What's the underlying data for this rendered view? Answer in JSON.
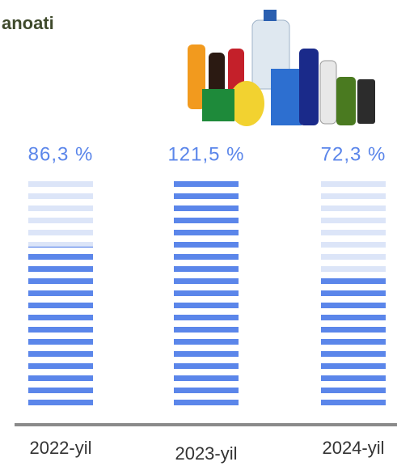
{
  "chart_data": {
    "type": "bar",
    "title": "anoati",
    "categories": [
      "2022-yil",
      "2023-yil",
      "2024-yil"
    ],
    "values": [
      86.3,
      121.5,
      72.3
    ],
    "value_labels": [
      "86,3 %",
      "121,5 %",
      "72,3 %"
    ],
    "color": "#5b86ea",
    "track_color": "#dce5f8"
  }
}
